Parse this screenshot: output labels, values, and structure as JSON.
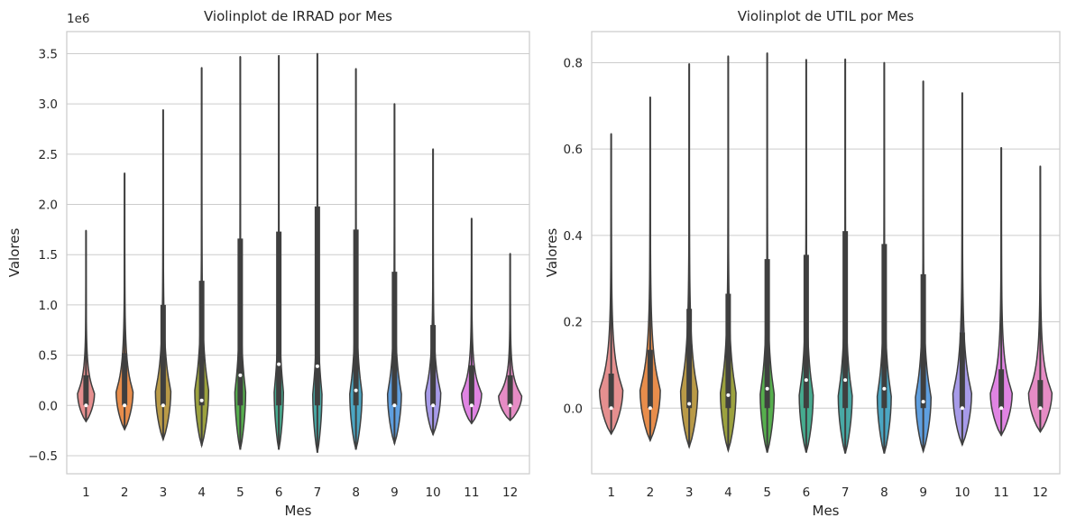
{
  "chart_data": [
    {
      "type": "violin",
      "title": "Violinplot de IRRAD por Mes",
      "xlabel": "Mes",
      "ylabel": "Valores",
      "offset_text": "1e6",
      "categories": [
        "1",
        "2",
        "3",
        "4",
        "5",
        "6",
        "7",
        "8",
        "9",
        "10",
        "11",
        "12"
      ],
      "ylim": [
        -0.68,
        3.72
      ],
      "yticks": [
        -0.5,
        0.0,
        0.5,
        1.0,
        1.5,
        2.0,
        2.5,
        3.0,
        3.5
      ],
      "ytick_labels": [
        "−0.5",
        "0.0",
        "0.5",
        "1.0",
        "1.5",
        "2.0",
        "2.5",
        "3.0",
        "3.5"
      ],
      "grid": true,
      "colors": [
        "#e58f8f",
        "#e88d4b",
        "#b99a47",
        "#9ca23e",
        "#56af4d",
        "#46ab8f",
        "#48a9a5",
        "#4ba6c3",
        "#5f9fe0",
        "#a79be9",
        "#e084e3",
        "#e68cc5"
      ],
      "violins": [
        {
          "min": -0.16,
          "max": 1.74,
          "q1": 0.0,
          "q3": 0.3,
          "median": 0.0,
          "width": 0.55
        },
        {
          "min": -0.24,
          "max": 2.31,
          "q1": 0.0,
          "q3": 0.52,
          "median": 0.0,
          "width": 0.55
        },
        {
          "min": -0.34,
          "max": 2.94,
          "q1": 0.0,
          "q3": 1.0,
          "median": 0.0,
          "width": 0.5
        },
        {
          "min": -0.4,
          "max": 3.36,
          "q1": 0.0,
          "q3": 1.24,
          "median": 0.05,
          "width": 0.45
        },
        {
          "min": -0.44,
          "max": 3.47,
          "q1": 0.0,
          "q3": 1.66,
          "median": 0.3,
          "width": 0.35
        },
        {
          "min": -0.44,
          "max": 3.48,
          "q1": 0.0,
          "q3": 1.73,
          "median": 0.41,
          "width": 0.3
        },
        {
          "min": -0.47,
          "max": 3.5,
          "q1": 0.0,
          "q3": 1.98,
          "median": 0.39,
          "width": 0.3
        },
        {
          "min": -0.44,
          "max": 3.35,
          "q1": 0.0,
          "q3": 1.75,
          "median": 0.15,
          "width": 0.4
        },
        {
          "min": -0.38,
          "max": 3.0,
          "q1": 0.0,
          "q3": 1.33,
          "median": 0.0,
          "width": 0.45
        },
        {
          "min": -0.29,
          "max": 2.55,
          "q1": 0.0,
          "q3": 0.8,
          "median": 0.0,
          "width": 0.5
        },
        {
          "min": -0.18,
          "max": 1.86,
          "q1": 0.0,
          "q3": 0.4,
          "median": 0.0,
          "width": 0.65
        },
        {
          "min": -0.15,
          "max": 1.51,
          "q1": 0.0,
          "q3": 0.3,
          "median": 0.0,
          "width": 0.75
        }
      ]
    },
    {
      "type": "violin",
      "title": "Violinplot de UTIL por Mes",
      "xlabel": "Mes",
      "ylabel": "Valores",
      "offset_text": "",
      "categories": [
        "1",
        "2",
        "3",
        "4",
        "5",
        "6",
        "7",
        "8",
        "9",
        "10",
        "11",
        "12"
      ],
      "ylim": [
        -0.152,
        0.872
      ],
      "yticks": [
        0.0,
        0.2,
        0.4,
        0.6,
        0.8
      ],
      "ytick_labels": [
        "0.0",
        "0.2",
        "0.4",
        "0.6",
        "0.8"
      ],
      "grid": true,
      "colors": [
        "#e58f8f",
        "#e88d4b",
        "#b99a47",
        "#9ca23e",
        "#56af4d",
        "#46ab8f",
        "#48a9a5",
        "#4ba6c3",
        "#5f9fe0",
        "#a79be9",
        "#e084e3",
        "#e68cc5"
      ],
      "violins": [
        {
          "min": -0.06,
          "max": 0.635,
          "q1": 0.0,
          "q3": 0.08,
          "median": 0.0,
          "width": 0.75
        },
        {
          "min": -0.075,
          "max": 0.72,
          "q1": 0.0,
          "q3": 0.135,
          "median": 0.0,
          "width": 0.65
        },
        {
          "min": -0.09,
          "max": 0.797,
          "q1": 0.0,
          "q3": 0.23,
          "median": 0.01,
          "width": 0.55
        },
        {
          "min": -0.098,
          "max": 0.815,
          "q1": 0.0,
          "q3": 0.265,
          "median": 0.03,
          "width": 0.5
        },
        {
          "min": -0.103,
          "max": 0.822,
          "q1": 0.0,
          "q3": 0.345,
          "median": 0.045,
          "width": 0.45
        },
        {
          "min": -0.103,
          "max": 0.807,
          "q1": 0.0,
          "q3": 0.355,
          "median": 0.065,
          "width": 0.45
        },
        {
          "min": -0.105,
          "max": 0.808,
          "q1": 0.0,
          "q3": 0.41,
          "median": 0.065,
          "width": 0.45
        },
        {
          "min": -0.105,
          "max": 0.8,
          "q1": 0.0,
          "q3": 0.38,
          "median": 0.045,
          "width": 0.45
        },
        {
          "min": -0.1,
          "max": 0.757,
          "q1": 0.0,
          "q3": 0.31,
          "median": 0.015,
          "width": 0.5
        },
        {
          "min": -0.085,
          "max": 0.73,
          "q1": 0.0,
          "q3": 0.175,
          "median": 0.0,
          "width": 0.6
        },
        {
          "min": -0.063,
          "max": 0.603,
          "q1": 0.0,
          "q3": 0.09,
          "median": 0.0,
          "width": 0.7
        },
        {
          "min": -0.055,
          "max": 0.56,
          "q1": 0.0,
          "q3": 0.065,
          "median": 0.0,
          "width": 0.75
        }
      ]
    }
  ]
}
